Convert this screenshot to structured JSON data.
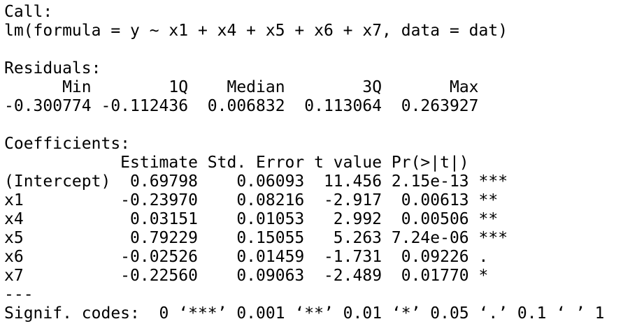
{
  "call": {
    "label": "Call:",
    "formula": "lm(formula = y ~ x1 + x4 + x5 + x6 + x7, data = dat)"
  },
  "residuals": {
    "label": "Residuals:",
    "headers": [
      "Min",
      "1Q",
      "Median",
      "3Q",
      "Max"
    ],
    "values": [
      "-0.300774",
      "-0.112436",
      "0.006832",
      "0.113064",
      "0.263927"
    ]
  },
  "coefficients": {
    "label": "Coefficients:",
    "headers": [
      "Estimate",
      "Std. Error",
      "t value",
      "Pr(>|t|)"
    ],
    "rows": [
      {
        "name": "(Intercept)",
        "values": [
          "0.69798",
          "0.06093",
          "11.456",
          "2.15e-13"
        ],
        "signif": "***"
      },
      {
        "name": "x1",
        "values": [
          "-0.23970",
          "0.08216",
          "-2.917",
          "0.00613"
        ],
        "signif": "**"
      },
      {
        "name": "x4",
        "values": [
          "0.03151",
          "0.01053",
          "2.992",
          "0.00506"
        ],
        "signif": "**"
      },
      {
        "name": "x5",
        "values": [
          "0.79229",
          "0.15055",
          "5.263",
          "7.24e-06"
        ],
        "signif": "***"
      },
      {
        "name": "x6",
        "values": [
          "-0.02526",
          "0.01459",
          "-1.731",
          "0.09226"
        ],
        "signif": "."
      },
      {
        "name": "x7",
        "values": [
          "-0.22560",
          "0.09063",
          "-2.489",
          "0.01770"
        ],
        "signif": "*"
      }
    ]
  },
  "separator": "---",
  "signif_codes": "Signif. codes:  0 ‘***’ 0.001 ‘**’ 0.01 ‘*’ 0.05 ‘.’ 0.1 ‘ ’ 1"
}
